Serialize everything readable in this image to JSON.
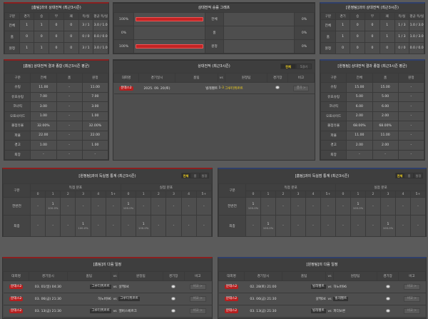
{
  "h2h_home": {
    "title": "[홈팀]과의 상대전적 (최근3시즌)",
    "headers": [
      "구분",
      "경기",
      "승",
      "무",
      "패",
      "득/실",
      "평균 득/실"
    ],
    "rows": [
      [
        "전체",
        "1",
        "1",
        "0",
        "0",
        "3 / 1",
        "3.0 / 1.0"
      ],
      [
        "홈",
        "0",
        "0",
        "0",
        "0",
        "0 / 0",
        "0.0 / 0.0"
      ],
      [
        "원정",
        "1",
        "1",
        "0",
        "0",
        "3 / 1",
        "3.0 / 1.0"
      ]
    ]
  },
  "graph": {
    "title": "상대전적 승률 그래프",
    "rows": [
      {
        "label": "전체",
        "left": "100%",
        "left_value": 100,
        "right": "0%",
        "right_value": 0
      },
      {
        "label": "홈",
        "left": "0%",
        "left_value": 0,
        "right": "0%",
        "right_value": 0
      },
      {
        "label": "원정",
        "left": "100%",
        "left_value": 100,
        "right": "0%",
        "right_value": 0
      }
    ],
    "bar_color": "#c32424"
  },
  "h2h_away": {
    "title": "[원정팀]과의 상대전적 (최근3시즌)",
    "headers": [
      "구분",
      "경기",
      "승",
      "무",
      "패",
      "득/실",
      "평균 득/실"
    ],
    "rows": [
      [
        "전체",
        "1",
        "0",
        "0",
        "1",
        "1 / 3",
        "1.0 / 3.0"
      ],
      [
        "홈",
        "1",
        "0",
        "0",
        "1",
        "1 / 3",
        "1.0 / 3.0"
      ],
      [
        "원정",
        "0",
        "0",
        "0",
        "0",
        "0 / 0",
        "0.0 / 0.0"
      ]
    ]
  },
  "stats_home": {
    "title": "[홈팀] 상대전적 결과 종합 (최근3시즌 평균)",
    "headers": [
      "구분",
      "전체",
      "홈",
      "원정"
    ],
    "rows": [
      [
        "슈팅",
        "11.00",
        "-",
        "11.00"
      ],
      [
        "유효슈팅",
        "7.00",
        "-",
        "7.00"
      ],
      [
        "코너킥",
        "3.00",
        "-",
        "3.00"
      ],
      [
        "오프사이드",
        "1.00",
        "-",
        "1.00"
      ],
      [
        "볼점유율",
        "32.00%",
        "-",
        "32.00%"
      ],
      [
        "파울",
        "22.00",
        "-",
        "22.00"
      ],
      [
        "경고",
        "1.00",
        "-",
        "1.00"
      ],
      [
        "퇴장",
        "-",
        "-",
        "-"
      ]
    ]
  },
  "matches": {
    "title": "상대전적 (최근3시즌)",
    "tabs": [
      "전체",
      "5경기"
    ],
    "headers": [
      "대회명",
      "경기일시",
      "홈팀",
      "vs",
      "원정팀",
      "경기장",
      "비고"
    ],
    "rows": [
      {
        "league": "분데스2",
        "date": "2025. 09. 20(토)",
        "home": "빌레펠트",
        "home_score": "1",
        "sep": "-",
        "away_score": "3",
        "away": "그루터퓌르트",
        "button": "결과 >"
      }
    ]
  },
  "stats_away": {
    "title": "[원정팀] 상대전적 결과 종합 (최근3시즌 평균)",
    "headers": [
      "구분",
      "전체",
      "홈",
      "원정"
    ],
    "rows": [
      [
        "슈팅",
        "15.00",
        "15.00",
        "-"
      ],
      [
        "유효슈팅",
        "5.00",
        "5.00",
        "-"
      ],
      [
        "코너킥",
        "6.00",
        "6.00",
        "-"
      ],
      [
        "오프사이드",
        "2.00",
        "2.00",
        "-"
      ],
      [
        "볼점유율",
        "68.00%",
        "68.00%",
        "-"
      ],
      [
        "파울",
        "11.00",
        "11.00",
        "-"
      ],
      [
        "경고",
        "2.00",
        "2.00",
        "-"
      ],
      [
        "퇴장",
        "-",
        "-",
        "-"
      ]
    ]
  },
  "goals_left": {
    "title": "[원정팀]과의 득실점 통계 (최근3시즌)",
    "tabs": [
      "전체",
      "홈",
      "원정"
    ],
    "col_label": "구분",
    "group_for": "득점 분포",
    "group_against": "실점 분포",
    "buckets": [
      "0",
      "1",
      "2",
      "3",
      "4",
      "5+"
    ],
    "rows": [
      {
        "label": "전반전",
        "cells": [
          "-",
          "1|100.0%",
          "-",
          "-",
          "-",
          "-",
          "1|100.0%",
          "-",
          "-",
          "-",
          "-",
          "-"
        ]
      },
      {
        "label": "최종",
        "cells": [
          "-",
          "-",
          "-",
          "1|100.0%",
          "-",
          "-",
          "-",
          "1|100.0%",
          "-",
          "-",
          "-",
          "-"
        ]
      }
    ]
  },
  "goals_right": {
    "title": "[홈팀]과의 득실점 통계 (최근3시즌)",
    "tabs": [
      "전체",
      "홈",
      "원정"
    ],
    "col_label": "구분",
    "group_for": "득점 분포",
    "group_against": "실점 분포",
    "buckets": [
      "0",
      "1",
      "2",
      "3",
      "4",
      "5+"
    ],
    "rows": [
      {
        "label": "전반전",
        "cells": [
          "1|100.0%",
          "-",
          "-",
          "-",
          "-",
          "-",
          "-",
          "1|100.0%",
          "-",
          "-",
          "-",
          "-"
        ]
      },
      {
        "label": "최종",
        "cells": [
          "-",
          "1|100.0%",
          "-",
          "-",
          "-",
          "-",
          "-",
          "-",
          "-",
          "1|100.0%",
          "-",
          "-"
        ]
      }
    ]
  },
  "sched_left": {
    "title": "[홈팀]의 다음 일정",
    "headers": [
      "대회명",
      "경기일시",
      "홈팀",
      "vs",
      "원정팀",
      "경기장",
      "비고"
    ],
    "rows": [
      {
        "league": "분데스2",
        "date": "03. 01(일) 04:30",
        "home": "그루터퓌르트",
        "away": "샬케04",
        "hl": "home",
        "vs": "vs",
        "button": "비교 >"
      },
      {
        "league": "분데스2",
        "date": "03. 06(금) 21:30",
        "home": "하노버96",
        "away": "그루터퓌르트",
        "hl": "away",
        "vs": "vs",
        "button": "비교 >"
      },
      {
        "league": "분데스2",
        "date": "03. 13(금) 21:30",
        "home": "그루터퓌르트",
        "away": "엘버스베르크",
        "hl": "home",
        "vs": "vs",
        "button": "비교 >"
      }
    ]
  },
  "sched_right": {
    "title": "[원정팀]의 다음 일정",
    "headers": [
      "대회명",
      "경기일시",
      "홈팀",
      "vs",
      "원정팀",
      "경기장",
      "비고"
    ],
    "rows": [
      {
        "league": "분데스2",
        "date": "02. 28(토) 21:00",
        "home": "빌레펠트",
        "away": "하노버96",
        "hl": "home",
        "vs": "vs",
        "button": "비교 >"
      },
      {
        "league": "분데스2",
        "date": "03. 06(금) 21:30",
        "home": "샬케04",
        "away": "빌레펠트",
        "hl": "away",
        "vs": "vs",
        "button": "비교 >"
      },
      {
        "league": "분데스2",
        "date": "03. 13(금) 21:30",
        "home": "빌레펠트",
        "away": "파더보른",
        "hl": "home",
        "vs": "vs",
        "button": "비교 >"
      }
    ]
  }
}
